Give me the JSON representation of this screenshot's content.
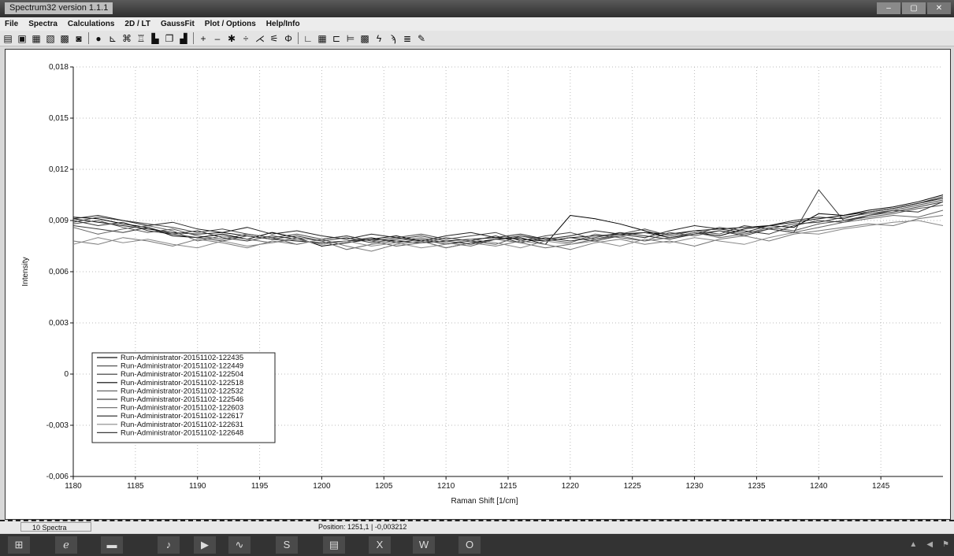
{
  "window": {
    "title": "Spectrum32 version 1.1.1",
    "controls": [
      "–",
      "▢",
      "✕"
    ]
  },
  "menu": [
    {
      "name": "menu-file",
      "label": "File"
    },
    {
      "name": "menu-spectra",
      "label": "Spectra"
    },
    {
      "name": "menu-calculations",
      "label": "Calculations"
    },
    {
      "name": "menu-2d-lt",
      "label": "2D / LT"
    },
    {
      "name": "menu-gaussfit",
      "label": "GaussFit"
    },
    {
      "name": "menu-plot-options",
      "label": "Plot / Options"
    },
    {
      "name": "menu-help-info",
      "label": "Help/Info"
    }
  ],
  "toolbar": {
    "groups": [
      [
        {
          "name": "open-icon",
          "glyph": "▤"
        },
        {
          "name": "save-icon",
          "glyph": "▣"
        },
        {
          "name": "save-all-icon",
          "glyph": "▦"
        },
        {
          "name": "export-icon",
          "glyph": "▧"
        },
        {
          "name": "copy-icon",
          "glyph": "▩"
        },
        {
          "name": "print-icon",
          "glyph": "◙"
        }
      ],
      [
        {
          "name": "record-icon",
          "glyph": "●"
        },
        {
          "name": "baseline-icon",
          "glyph": "⊾"
        },
        {
          "name": "smooth-icon",
          "glyph": "⌘"
        },
        {
          "name": "normalize-icon",
          "glyph": "♖"
        },
        {
          "name": "book-icon",
          "glyph": "▙"
        },
        {
          "name": "pages-icon",
          "glyph": "❐"
        },
        {
          "name": "copy-page-icon",
          "glyph": "▟"
        }
      ],
      [
        {
          "name": "add-icon",
          "glyph": "+"
        },
        {
          "name": "subtract-icon",
          "glyph": "–"
        },
        {
          "name": "multiply-icon",
          "glyph": "✱"
        },
        {
          "name": "divide-icon",
          "glyph": "÷"
        },
        {
          "name": "peak-icon",
          "glyph": "⋌"
        },
        {
          "name": "peaks-icon",
          "glyph": "⚟"
        },
        {
          "name": "phi-icon",
          "glyph": "Φ"
        }
      ],
      [
        {
          "name": "axis-icon",
          "glyph": "∟"
        },
        {
          "name": "grid-icon",
          "glyph": "▦"
        },
        {
          "name": "frame-icon",
          "glyph": "⊏"
        },
        {
          "name": "stack-icon",
          "glyph": "⊨"
        },
        {
          "name": "fill-icon",
          "glyph": "▩"
        },
        {
          "name": "zoom-x-icon",
          "glyph": "ϟ"
        },
        {
          "name": "zoom-y-icon",
          "glyph": "ϡ"
        },
        {
          "name": "legend-icon",
          "glyph": "≣"
        },
        {
          "name": "pen-icon",
          "glyph": "✎"
        }
      ]
    ]
  },
  "chart_data": {
    "type": "line",
    "xlabel": "Raman Shift [1/cm]",
    "ylabel": "Intensity",
    "xlim": [
      1180,
      1250
    ],
    "ylim": [
      -0.006,
      0.018
    ],
    "xticks": [
      1180,
      1185,
      1190,
      1195,
      1200,
      1205,
      1210,
      1215,
      1220,
      1225,
      1230,
      1235,
      1240,
      1245
    ],
    "xtick_labels": [
      "1180",
      "1185",
      "1190",
      "1195",
      "1200",
      "1205",
      "1210",
      "1215",
      "1220",
      "1225",
      "1230",
      "1235",
      "1240",
      "1245"
    ],
    "yticks": [
      -0.006,
      -0.003,
      0,
      0.003,
      0.006,
      0.009,
      0.012,
      0.015,
      0.018
    ],
    "ytick_labels": [
      "-0,006",
      "-0,003",
      "0",
      "0,003",
      "0,006",
      "0,009",
      "0,012",
      "0,015",
      "0,018"
    ],
    "grid": true,
    "legend_position": "bottom-left",
    "x": [
      1180,
      1182,
      1184,
      1186,
      1188,
      1190,
      1192,
      1194,
      1196,
      1198,
      1200,
      1202,
      1204,
      1206,
      1208,
      1210,
      1212,
      1214,
      1216,
      1218,
      1220,
      1222,
      1224,
      1226,
      1228,
      1230,
      1232,
      1234,
      1236,
      1238,
      1240,
      1242,
      1244,
      1246,
      1248,
      1250
    ],
    "series": [
      {
        "name": "Run-Administrator-20151102-122435",
        "color": "#111111",
        "values": [
          0.0091,
          0.0089,
          0.0087,
          0.0085,
          0.0083,
          0.0082,
          0.0083,
          0.0081,
          0.0079,
          0.0078,
          0.0077,
          0.0078,
          0.0079,
          0.0078,
          0.0077,
          0.0078,
          0.0079,
          0.008,
          0.0079,
          0.0078,
          0.008,
          0.0081,
          0.0082,
          0.0083,
          0.0082,
          0.0084,
          0.0085,
          0.0086,
          0.0087,
          0.0089,
          0.0091,
          0.0093,
          0.0095,
          0.0097,
          0.01,
          0.0103
        ]
      },
      {
        "name": "Run-Administrator-20151102-122449",
        "color": "#555555",
        "values": [
          0.0088,
          0.009,
          0.0086,
          0.0083,
          0.0085,
          0.0081,
          0.0079,
          0.0082,
          0.008,
          0.0076,
          0.0079,
          0.0081,
          0.0078,
          0.0075,
          0.0077,
          0.008,
          0.0078,
          0.0076,
          0.0081,
          0.0079,
          0.0077,
          0.0082,
          0.008,
          0.0078,
          0.0083,
          0.0081,
          0.0084,
          0.0082,
          0.0086,
          0.0084,
          0.0088,
          0.009,
          0.0092,
          0.0094,
          0.0097,
          0.0099
        ]
      },
      {
        "name": "Run-Administrator-20151102-122504",
        "color": "#333333",
        "values": [
          0.009,
          0.0087,
          0.0089,
          0.0084,
          0.0082,
          0.0084,
          0.008,
          0.0078,
          0.0081,
          0.0079,
          0.0076,
          0.0078,
          0.008,
          0.0077,
          0.0079,
          0.0076,
          0.0078,
          0.0081,
          0.0077,
          0.008,
          0.0078,
          0.008,
          0.0083,
          0.0081,
          0.0079,
          0.0082,
          0.0086,
          0.0084,
          0.0082,
          0.0087,
          0.009,
          0.0089,
          0.0093,
          0.0096,
          0.0095,
          0.0101
        ]
      },
      {
        "name": "Run-Administrator-20151102-122518",
        "color": "#000000",
        "values": [
          0.0092,
          0.0091,
          0.0088,
          0.0086,
          0.0081,
          0.008,
          0.0082,
          0.0079,
          0.0083,
          0.008,
          0.0075,
          0.0077,
          0.0079,
          0.0081,
          0.0078,
          0.0074,
          0.0077,
          0.0079,
          0.008,
          0.0076,
          0.0093,
          0.0091,
          0.0088,
          0.0084,
          0.008,
          0.0083,
          0.0081,
          0.0085,
          0.0087,
          0.0086,
          0.0094,
          0.0093,
          0.0096,
          0.0098,
          0.0101,
          0.0105
        ]
      },
      {
        "name": "Run-Administrator-20151102-122532",
        "color": "#666666",
        "values": [
          0.0086,
          0.0082,
          0.0085,
          0.0087,
          0.0084,
          0.0078,
          0.0081,
          0.0079,
          0.0077,
          0.008,
          0.0078,
          0.0073,
          0.0076,
          0.0078,
          0.008,
          0.0077,
          0.0075,
          0.0079,
          0.0077,
          0.0074,
          0.0076,
          0.0079,
          0.0081,
          0.0078,
          0.008,
          0.0083,
          0.008,
          0.0082,
          0.0085,
          0.0083,
          0.0086,
          0.0089,
          0.0091,
          0.0093,
          0.0092,
          0.0096
        ]
      },
      {
        "name": "Run-Administrator-20151102-122546",
        "color": "#444444",
        "values": [
          0.0089,
          0.0092,
          0.009,
          0.0088,
          0.0086,
          0.0083,
          0.0085,
          0.0082,
          0.008,
          0.0082,
          0.0079,
          0.0081,
          0.0078,
          0.008,
          0.0082,
          0.0079,
          0.0081,
          0.0083,
          0.0078,
          0.0081,
          0.0083,
          0.0079,
          0.0082,
          0.0085,
          0.0081,
          0.0084,
          0.0082,
          0.0087,
          0.0085,
          0.0088,
          0.0089,
          0.0092,
          0.0094,
          0.0096,
          0.0099,
          0.0102
        ]
      },
      {
        "name": "Run-Administrator-20151102-122603",
        "color": "#777777",
        "values": [
          0.0078,
          0.0076,
          0.008,
          0.0078,
          0.0075,
          0.0079,
          0.0077,
          0.0074,
          0.0078,
          0.0076,
          0.0079,
          0.0075,
          0.0072,
          0.0076,
          0.0078,
          0.0074,
          0.0077,
          0.0075,
          0.0078,
          0.0076,
          0.0073,
          0.0077,
          0.0079,
          0.0076,
          0.0078,
          0.0075,
          0.0079,
          0.0081,
          0.0078,
          0.0082,
          0.0084,
          0.0086,
          0.0088,
          0.0087,
          0.0091,
          0.0093
        ]
      },
      {
        "name": "Run-Administrator-20151102-122617",
        "color": "#222222",
        "values": [
          0.0091,
          0.0093,
          0.009,
          0.0087,
          0.0089,
          0.0085,
          0.0083,
          0.0086,
          0.0082,
          0.0084,
          0.0081,
          0.0079,
          0.0082,
          0.008,
          0.0078,
          0.0081,
          0.0083,
          0.008,
          0.0082,
          0.0079,
          0.0081,
          0.0084,
          0.0082,
          0.008,
          0.0084,
          0.0087,
          0.0085,
          0.0083,
          0.0087,
          0.009,
          0.0092,
          0.0091,
          0.0095,
          0.0097,
          0.01,
          0.0104
        ]
      },
      {
        "name": "Run-Administrator-20151102-122631",
        "color": "#888888",
        "values": [
          0.0076,
          0.008,
          0.0077,
          0.0079,
          0.0076,
          0.0074,
          0.0078,
          0.0075,
          0.0077,
          0.0079,
          0.0076,
          0.0078,
          0.0075,
          0.0077,
          0.0074,
          0.0076,
          0.0079,
          0.0077,
          0.0074,
          0.0078,
          0.0076,
          0.0078,
          0.0075,
          0.0079,
          0.0077,
          0.008,
          0.0078,
          0.0076,
          0.008,
          0.0083,
          0.0082,
          0.0085,
          0.0087,
          0.0089,
          0.009,
          0.0087
        ]
      },
      {
        "name": "Run-Administrator-20151102-122648",
        "color": "#3a3a3a",
        "values": [
          0.0087,
          0.0085,
          0.0083,
          0.0086,
          0.0082,
          0.008,
          0.0078,
          0.0081,
          0.0079,
          0.0081,
          0.0078,
          0.008,
          0.0077,
          0.0079,
          0.0081,
          0.0078,
          0.0076,
          0.0079,
          0.0081,
          0.0078,
          0.008,
          0.0078,
          0.0081,
          0.0083,
          0.008,
          0.0082,
          0.0084,
          0.0081,
          0.0085,
          0.0083,
          0.0108,
          0.009,
          0.0093,
          0.0095,
          0.0098,
          0.0101
        ]
      }
    ]
  },
  "status": {
    "spectra_count": "10 Spectra",
    "position": "Position: 1251,1 | -0,003212"
  },
  "taskbar": {
    "apps": [
      {
        "name": "start-button",
        "glyph": "⊞"
      },
      {
        "name": "browser-icon",
        "glyph": "ℯ"
      },
      {
        "name": "explorer-icon",
        "glyph": "▬"
      },
      {
        "name": "media-icon",
        "glyph": "♪"
      },
      {
        "name": "player-icon",
        "glyph": "▶"
      },
      {
        "name": "spectrum-icon",
        "glyph": "∿"
      },
      {
        "name": "skype-icon",
        "glyph": "S"
      },
      {
        "name": "notes-icon",
        "glyph": "▤"
      },
      {
        "name": "excel-icon",
        "glyph": "X"
      },
      {
        "name": "word-icon",
        "glyph": "W"
      },
      {
        "name": "outlook-icon",
        "glyph": "O"
      }
    ]
  }
}
